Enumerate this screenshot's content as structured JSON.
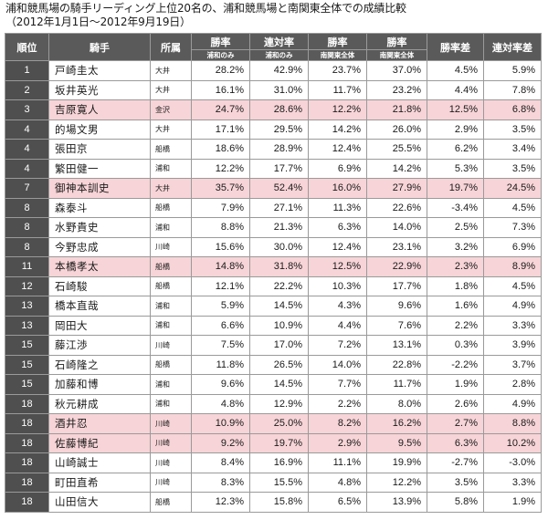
{
  "title": {
    "line1": "浦和競馬場の騎手リーディング上位20名の、浦和競馬場と南関東全体での成績比較",
    "line2": "（2012年1月1日～2012年9月19日）"
  },
  "headers": {
    "rank": "順位",
    "jockey": "騎手",
    "affiliation": "所属",
    "win_rate": "勝率",
    "place_rate": "連対率",
    "win_rate_diff": "勝率差",
    "place_rate_diff": "連対率差",
    "urawa_only": "浦和のみ",
    "south_kanto": "南関東全体"
  },
  "rows": [
    {
      "rank": "1",
      "name": "戸崎圭太",
      "aff": "大井",
      "uw": "28.2%",
      "up": "42.9%",
      "sw": "23.7%",
      "sp": "37.0%",
      "dw": "4.5%",
      "dp": "5.9%",
      "hl": false
    },
    {
      "rank": "2",
      "name": "坂井英光",
      "aff": "大井",
      "uw": "16.1%",
      "up": "31.0%",
      "sw": "11.7%",
      "sp": "23.2%",
      "dw": "4.4%",
      "dp": "7.8%",
      "hl": false
    },
    {
      "rank": "3",
      "name": "吉原寛人",
      "aff": "金沢",
      "uw": "24.7%",
      "up": "28.6%",
      "sw": "12.2%",
      "sp": "21.8%",
      "dw": "12.5%",
      "dp": "6.8%",
      "hl": true
    },
    {
      "rank": "4",
      "name": "的場文男",
      "aff": "大井",
      "uw": "17.1%",
      "up": "29.5%",
      "sw": "14.2%",
      "sp": "26.0%",
      "dw": "2.9%",
      "dp": "3.5%",
      "hl": false
    },
    {
      "rank": "4",
      "name": "張田京",
      "aff": "船橋",
      "uw": "18.6%",
      "up": "28.9%",
      "sw": "12.4%",
      "sp": "25.5%",
      "dw": "6.2%",
      "dp": "3.4%",
      "hl": false
    },
    {
      "rank": "4",
      "name": "繁田健一",
      "aff": "浦和",
      "uw": "12.2%",
      "up": "17.7%",
      "sw": "6.9%",
      "sp": "14.2%",
      "dw": "5.3%",
      "dp": "3.5%",
      "hl": false
    },
    {
      "rank": "7",
      "name": "御神本訓史",
      "aff": "大井",
      "uw": "35.7%",
      "up": "52.4%",
      "sw": "16.0%",
      "sp": "27.9%",
      "dw": "19.7%",
      "dp": "24.5%",
      "hl": true
    },
    {
      "rank": "8",
      "name": "森泰斗",
      "aff": "船橋",
      "uw": "7.9%",
      "up": "27.1%",
      "sw": "11.3%",
      "sp": "22.6%",
      "dw": "-3.4%",
      "dp": "4.5%",
      "hl": false
    },
    {
      "rank": "8",
      "name": "水野貴史",
      "aff": "浦和",
      "uw": "8.8%",
      "up": "21.3%",
      "sw": "6.3%",
      "sp": "14.0%",
      "dw": "2.5%",
      "dp": "7.3%",
      "hl": false
    },
    {
      "rank": "8",
      "name": "今野忠成",
      "aff": "川崎",
      "uw": "15.6%",
      "up": "30.0%",
      "sw": "12.4%",
      "sp": "23.1%",
      "dw": "3.2%",
      "dp": "6.9%",
      "hl": false
    },
    {
      "rank": "11",
      "name": "本橋孝太",
      "aff": "船橋",
      "uw": "14.8%",
      "up": "31.8%",
      "sw": "12.5%",
      "sp": "22.9%",
      "dw": "2.3%",
      "dp": "8.9%",
      "hl": true
    },
    {
      "rank": "12",
      "name": "石崎駿",
      "aff": "船橋",
      "uw": "12.1%",
      "up": "22.2%",
      "sw": "10.3%",
      "sp": "17.7%",
      "dw": "1.8%",
      "dp": "4.5%",
      "hl": false
    },
    {
      "rank": "13",
      "name": "橋本直哉",
      "aff": "浦和",
      "uw": "5.9%",
      "up": "14.5%",
      "sw": "4.3%",
      "sp": "9.6%",
      "dw": "1.6%",
      "dp": "4.9%",
      "hl": false
    },
    {
      "rank": "13",
      "name": "岡田大",
      "aff": "浦和",
      "uw": "6.6%",
      "up": "10.9%",
      "sw": "4.4%",
      "sp": "7.6%",
      "dw": "2.2%",
      "dp": "3.3%",
      "hl": false
    },
    {
      "rank": "15",
      "name": "藤江渉",
      "aff": "川崎",
      "uw": "7.5%",
      "up": "17.0%",
      "sw": "7.2%",
      "sp": "13.1%",
      "dw": "0.3%",
      "dp": "3.9%",
      "hl": false
    },
    {
      "rank": "15",
      "name": "石崎隆之",
      "aff": "船橋",
      "uw": "11.8%",
      "up": "26.5%",
      "sw": "14.0%",
      "sp": "22.8%",
      "dw": "-2.2%",
      "dp": "3.7%",
      "hl": false
    },
    {
      "rank": "15",
      "name": "加藤和博",
      "aff": "浦和",
      "uw": "9.6%",
      "up": "14.5%",
      "sw": "7.7%",
      "sp": "11.7%",
      "dw": "1.9%",
      "dp": "2.8%",
      "hl": false
    },
    {
      "rank": "18",
      "name": "秋元耕成",
      "aff": "浦和",
      "uw": "4.8%",
      "up": "12.9%",
      "sw": "2.2%",
      "sp": "8.0%",
      "dw": "2.6%",
      "dp": "4.9%",
      "hl": false
    },
    {
      "rank": "18",
      "name": "酒井忍",
      "aff": "川崎",
      "uw": "10.9%",
      "up": "25.0%",
      "sw": "8.2%",
      "sp": "16.2%",
      "dw": "2.7%",
      "dp": "8.8%",
      "hl": true
    },
    {
      "rank": "18",
      "name": "佐藤博紀",
      "aff": "川崎",
      "uw": "9.2%",
      "up": "19.7%",
      "sw": "2.9%",
      "sp": "9.5%",
      "dw": "6.3%",
      "dp": "10.2%",
      "hl": true
    },
    {
      "rank": "18",
      "name": "山崎誠士",
      "aff": "川崎",
      "uw": "8.4%",
      "up": "16.9%",
      "sw": "11.1%",
      "sp": "19.9%",
      "dw": "-2.7%",
      "dp": "-3.0%",
      "hl": false
    },
    {
      "rank": "18",
      "name": "町田直希",
      "aff": "川崎",
      "uw": "8.3%",
      "up": "15.5%",
      "sw": "4.8%",
      "sp": "12.2%",
      "dw": "3.5%",
      "dp": "3.3%",
      "hl": false
    },
    {
      "rank": "18",
      "name": "山田信大",
      "aff": "船橋",
      "uw": "12.3%",
      "up": "15.8%",
      "sw": "6.5%",
      "sp": "13.9%",
      "dw": "5.8%",
      "dp": "1.9%",
      "hl": false
    }
  ],
  "colors": {
    "header_bg": "#5a5a5a",
    "rank_bg": "#4f4f4f",
    "highlight": "#f7d4d7",
    "border": "#9a9a9a"
  }
}
